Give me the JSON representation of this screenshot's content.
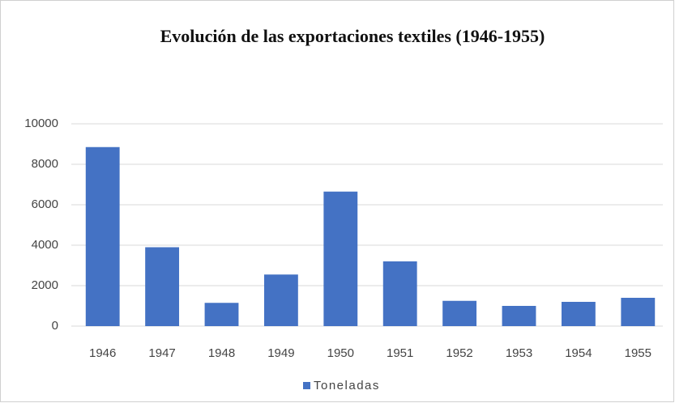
{
  "chart_data": {
    "type": "bar",
    "title": "Evolución de las exportaciones textiles (1946-1955)",
    "categories": [
      "1946",
      "1947",
      "1948",
      "1949",
      "1950",
      "1951",
      "1952",
      "1953",
      "1954",
      "1955"
    ],
    "series": [
      {
        "name": "Toneladas",
        "color": "#4472c4",
        "values": [
          8850,
          3900,
          1150,
          2550,
          6650,
          3200,
          1250,
          1000,
          1200,
          1400
        ]
      }
    ],
    "ylim": [
      0,
      10000
    ],
    "yticks": [
      0,
      2000,
      4000,
      6000,
      8000,
      10000
    ],
    "grid": true,
    "legend": "bottom"
  }
}
